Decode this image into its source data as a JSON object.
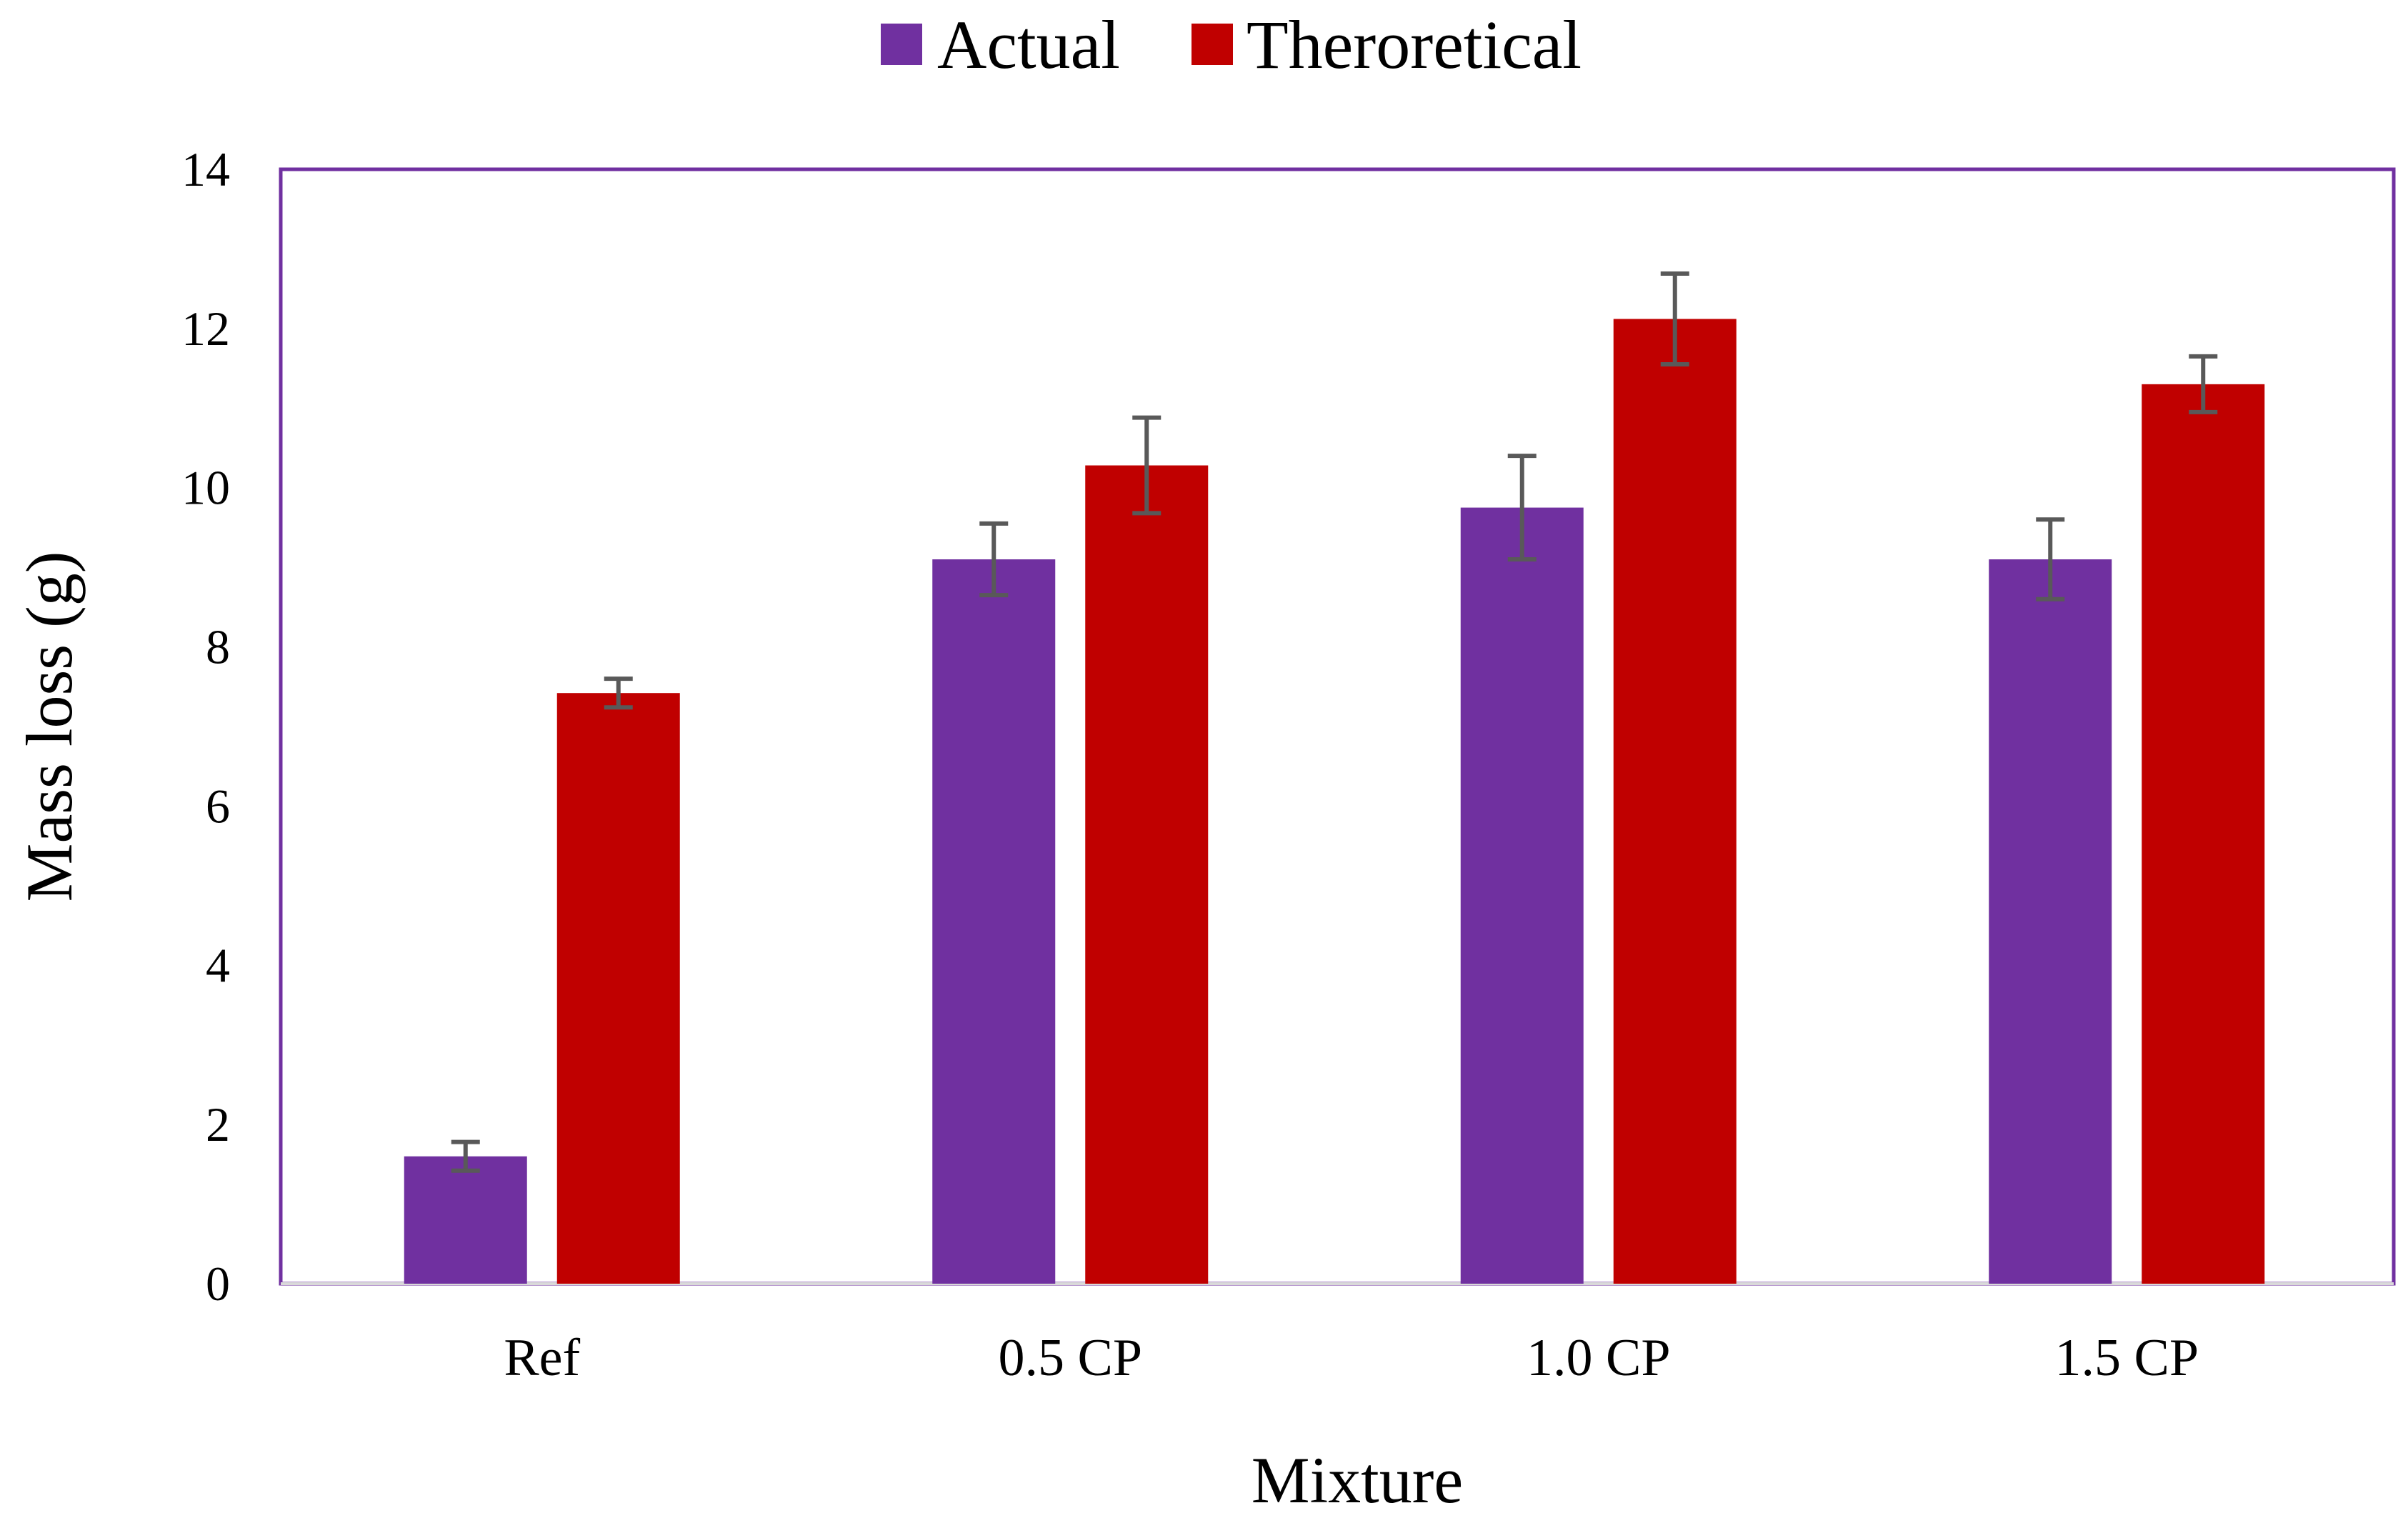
{
  "chart_data": {
    "type": "bar",
    "title": "",
    "xlabel": "Mixture",
    "ylabel": "Mass loss (g)",
    "categories": [
      "Ref",
      "0.5 CP",
      "1.0 CP",
      "1.5 CP"
    ],
    "series": [
      {
        "name": "Actual",
        "color": "#7030A0",
        "values": [
          1.6,
          9.1,
          9.75,
          9.1
        ],
        "errors": [
          0.18,
          0.45,
          0.65,
          0.5
        ]
      },
      {
        "name": "Theroretical",
        "color": "#C00000",
        "values": [
          7.42,
          10.28,
          12.12,
          11.3
        ],
        "errors": [
          0.18,
          0.6,
          0.57,
          0.35
        ]
      }
    ],
    "ylim": [
      0,
      14
    ],
    "yticks": [
      "0",
      "2",
      "4",
      "6",
      "8",
      "10",
      "12",
      "14"
    ],
    "legend_position": "top-center",
    "grid": false,
    "frame_color": "#7030A0",
    "errorbar_color": "#595959"
  }
}
